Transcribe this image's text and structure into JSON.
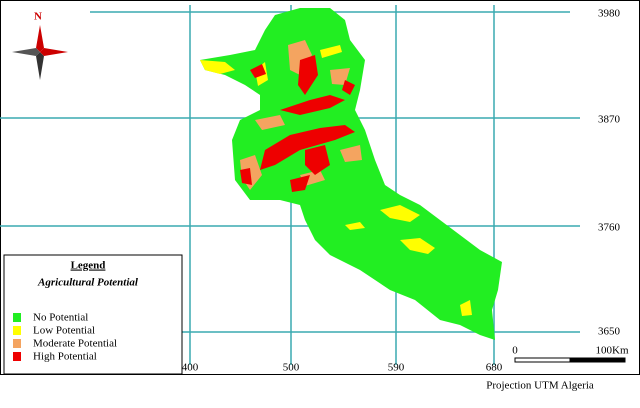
{
  "map": {
    "north": "N",
    "grid_y_labels": [
      "3980",
      "3870",
      "3760",
      "3650"
    ],
    "grid_x_labels": [
      "400",
      "500",
      "590",
      "680"
    ],
    "legend": {
      "title": "Legend",
      "subtitle": "Agricultural Potential",
      "items": [
        {
          "label": "No Potential",
          "color": "#22ee22"
        },
        {
          "label": "Low Potential",
          "color": "#ffff00"
        },
        {
          "label": "Moderate Potential",
          "color": "#f4a460"
        },
        {
          "label": "High Potential",
          "color": "#ee0000"
        }
      ]
    },
    "scale": {
      "start": "0",
      "end": "100Km"
    },
    "projection": "Projection UTM Algeria"
  }
}
